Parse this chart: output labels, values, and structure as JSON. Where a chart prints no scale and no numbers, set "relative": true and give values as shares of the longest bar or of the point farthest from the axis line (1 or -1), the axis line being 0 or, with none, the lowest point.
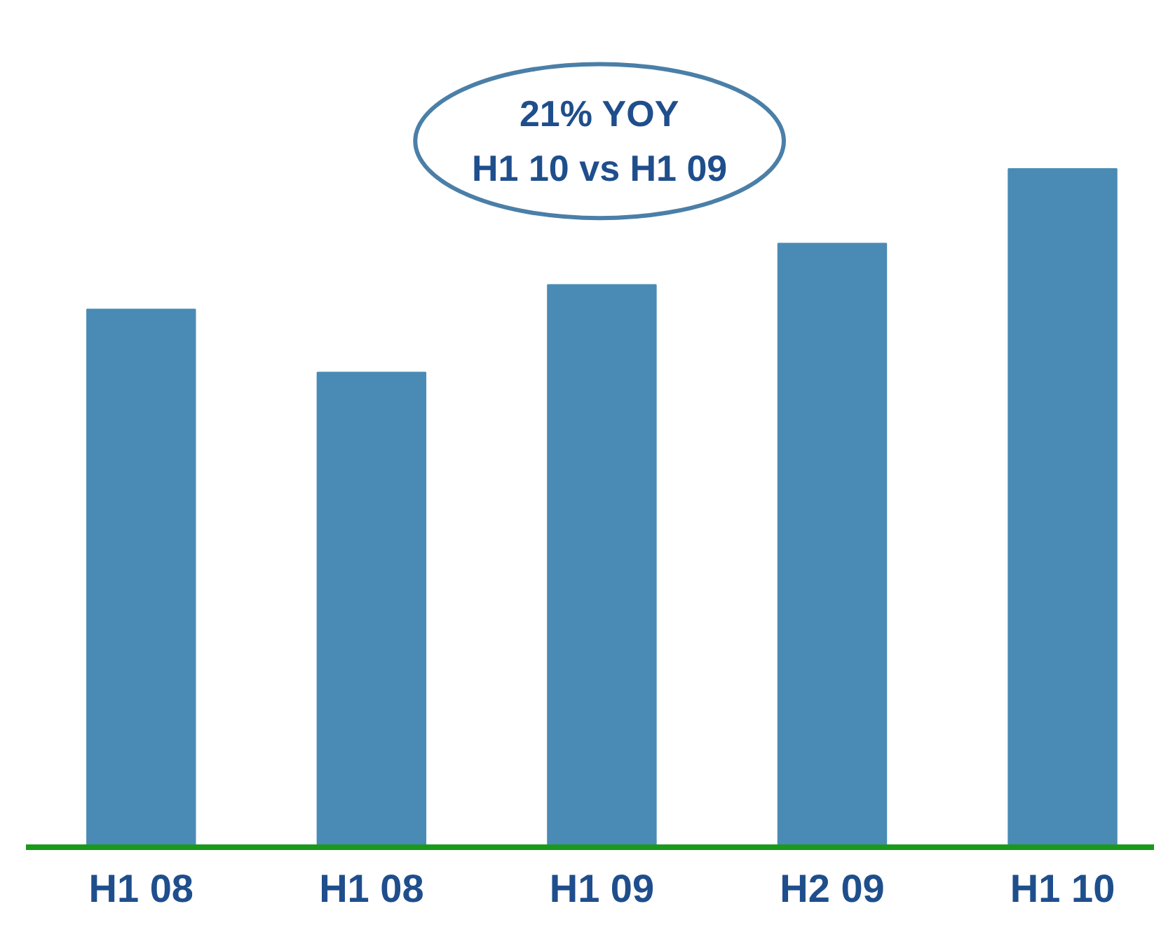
{
  "chart_data": {
    "type": "bar",
    "relative": true,
    "categories": [
      "H1 08",
      "H1 08",
      "H1 09",
      "H2 09",
      "H1 10"
    ],
    "values": [
      0.793,
      0.7,
      0.829,
      0.89,
      1.0
    ],
    "color": "#4a8bb5",
    "annotations": [
      "21% YOY\nH1 10 vs H1 09"
    ]
  }
}
